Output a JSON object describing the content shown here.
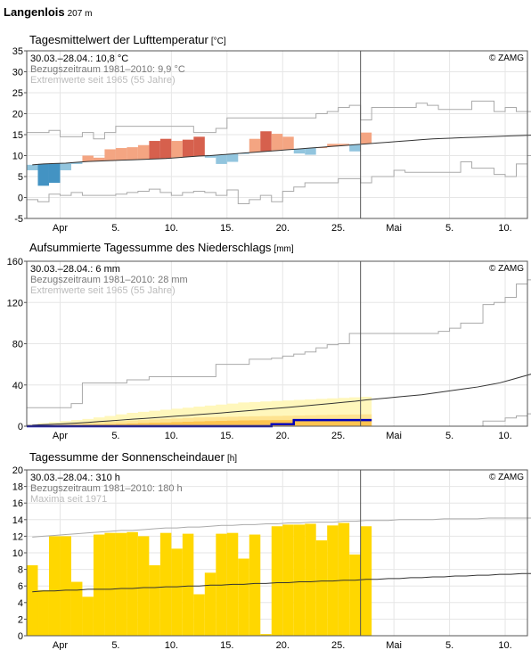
{
  "station": {
    "name": "Langenlois",
    "altitude": "207 m"
  },
  "colors": {
    "grid": "#e6e6e6",
    "frame": "#555555",
    "ref_line": "#333333",
    "extreme_line": "#aaaaaa",
    "warm_strong": "#d6604d",
    "warm": "#f4a582",
    "cold": "#92c5de",
    "cold_strong": "#4393c3",
    "precip_current": "#0000bb",
    "precip_range_fill": "#fff7bc",
    "precip_mid_fill": "#fee391",
    "precip_low_fill": "#fec44f",
    "sun_fill": "#ffd700",
    "today_line": "#555555"
  },
  "chart_data": [
    {
      "type": "line",
      "id": "temperature",
      "title": "Tagesmittelwert der Lufttemperatur",
      "unit": "[°C]",
      "ylim": [
        -5,
        35
      ],
      "yticks": [
        -5,
        0,
        5,
        10,
        15,
        20,
        25,
        30,
        35
      ],
      "x_range": [
        0,
        45
      ],
      "x_ticks": [
        {
          "x": 3,
          "label": "Apr"
        },
        {
          "x": 8,
          "label": "5."
        },
        {
          "x": 13,
          "label": "10."
        },
        {
          "x": 18,
          "label": "15."
        },
        {
          "x": 23,
          "label": "20."
        },
        {
          "x": 28,
          "label": "25."
        },
        {
          "x": 33,
          "label": "Mai"
        },
        {
          "x": 38,
          "label": "5."
        },
        {
          "x": 43,
          "label": "10."
        }
      ],
      "today_x": 30,
      "legend": {
        "current": "30.03.–28.04.: 10,8 °C",
        "reference": "Bezugszeitraum 1981–2010: 9,9 °C",
        "extremes": "Extremwerte seit 1965 (55 Jahre)"
      },
      "credit": "© ZAMG",
      "grid": true,
      "series": [
        {
          "role": "observed",
          "values": [
            6.5,
            2.8,
            3.5,
            6.5,
            8.0,
            10.0,
            9.5,
            11.5,
            11.8,
            12.0,
            12.5,
            13.5,
            14.0,
            13.5,
            13.8,
            14.5,
            9.5,
            8.0,
            8.5,
            10.5,
            14.0,
            15.8,
            15.2,
            14.5,
            10.5,
            10.2,
            12.0,
            12.8,
            12.8,
            11.0,
            15.5
          ]
        },
        {
          "role": "reference",
          "values": [
            7.8,
            8.0,
            8.1,
            8.2,
            8.4,
            8.6,
            8.7,
            8.8,
            8.9,
            9.0,
            9.1,
            9.2,
            9.3,
            9.5,
            9.7,
            9.9,
            10.0,
            10.2,
            10.4,
            10.6,
            10.8,
            11.0,
            11.2,
            11.4,
            11.6,
            11.8,
            12.0,
            12.2,
            12.4,
            12.6,
            12.8,
            13.0,
            13.2,
            13.4,
            13.6,
            13.8,
            14.0,
            14.1,
            14.2,
            14.3,
            14.4,
            14.5,
            14.6,
            14.7,
            14.8,
            14.9
          ]
        },
        {
          "role": "max_extreme",
          "values": [
            15.5,
            15.5,
            16.0,
            14.5,
            14.5,
            15.5,
            14.0,
            15.5,
            17.0,
            17.0,
            17.0,
            17.0,
            17.0,
            17.0,
            17.0,
            15.5,
            15.5,
            16.5,
            19.0,
            19.0,
            19.0,
            19.0,
            19.0,
            19.0,
            19.0,
            19.0,
            20.0,
            20.5,
            21.5,
            22.0,
            18.5,
            21.5,
            21.5,
            21.5,
            21.5,
            22.5,
            22.0,
            21.0,
            21.0,
            21.0,
            23.0,
            23.0,
            20.5,
            21.5,
            20.5,
            20.5
          ]
        },
        {
          "role": "min_extreme",
          "values": [
            -0.5,
            -1.0,
            0.8,
            0.5,
            1.2,
            0.5,
            0.5,
            0.5,
            0.8,
            1.2,
            1.5,
            2.0,
            1.2,
            0.5,
            1.2,
            1.5,
            1.2,
            0.5,
            1.8,
            -1.5,
            -0.5,
            0.5,
            -1.0,
            1.5,
            2.5,
            3.5,
            3.5,
            3.5,
            4.5,
            4.5,
            3.5,
            5.0,
            5.0,
            6.5,
            6.0,
            6.0,
            6.0,
            6.0,
            6.0,
            8.5,
            7.0,
            7.0,
            5.5,
            5.0,
            8.0,
            10.0
          ]
        }
      ]
    },
    {
      "type": "area",
      "id": "precipitation",
      "title": "Aufsummierte Tagessumme des Niederschlags",
      "unit": "[mm]",
      "ylim": [
        0,
        160
      ],
      "yticks": [
        0,
        40,
        80,
        120,
        160
      ],
      "x_range": [
        0,
        45
      ],
      "x_ticks": [
        {
          "x": 3,
          "label": "Apr"
        },
        {
          "x": 8,
          "label": "5."
        },
        {
          "x": 13,
          "label": "10."
        },
        {
          "x": 18,
          "label": "15."
        },
        {
          "x": 23,
          "label": "20."
        },
        {
          "x": 28,
          "label": "25."
        },
        {
          "x": 33,
          "label": "Mai"
        },
        {
          "x": 38,
          "label": "5."
        },
        {
          "x": 43,
          "label": "10."
        }
      ],
      "today_x": 30,
      "legend": {
        "current": "30.03.–28.04.: 6 mm",
        "reference": "Bezugszeitraum 1981–2010: 28 mm",
        "extremes": "Extremwerte seit 1965 (55 Jahre)"
      },
      "credit": "© ZAMG",
      "grid": true,
      "series": [
        {
          "role": "observed",
          "values": [
            0,
            0,
            0,
            0,
            0,
            0,
            0,
            0,
            0,
            0,
            0,
            0,
            0,
            0,
            0,
            0,
            0,
            0,
            0,
            0,
            0,
            0,
            2,
            2,
            6,
            6,
            6,
            6,
            6,
            6,
            6
          ]
        },
        {
          "role": "reference",
          "values": [
            1,
            1.5,
            2,
            2.5,
            3,
            3.7,
            4.5,
            5.2,
            6,
            6.8,
            7.5,
            8.2,
            9,
            9.8,
            10.5,
            11.3,
            12.1,
            12.9,
            13.8,
            14.7,
            15.6,
            16.5,
            17.4,
            18.3,
            19.2,
            20.2,
            21.2,
            22.2,
            23.2,
            24.2,
            25.5,
            26.5,
            27.5,
            28.5,
            29.5,
            30.5,
            32,
            33.5,
            35,
            36.5,
            38,
            40,
            42,
            45,
            48,
            51
          ]
        },
        {
          "role": "max_extreme",
          "values": [
            18,
            18,
            18,
            18,
            22,
            42,
            42,
            42,
            42,
            45,
            45,
            48,
            48,
            48,
            48,
            48,
            48,
            60,
            60,
            60,
            65,
            65,
            66,
            68,
            70,
            72,
            76,
            79,
            80,
            90,
            90,
            90,
            90,
            90,
            90,
            90,
            90,
            92,
            95,
            100,
            100,
            118,
            120,
            125,
            138,
            142
          ]
        },
        {
          "role": "min_extreme",
          "values": [
            0,
            0,
            0,
            0,
            0,
            0,
            0,
            0,
            0,
            0,
            0,
            0,
            0,
            0,
            0,
            0,
            0,
            0,
            0,
            0,
            0,
            0,
            0,
            0,
            0,
            0,
            0,
            0,
            0,
            0,
            0,
            0,
            0,
            0,
            0,
            0,
            0,
            0,
            0,
            0,
            0,
            5,
            5,
            8,
            10,
            12
          ]
        },
        {
          "role": "band_upper",
          "values": [
            2,
            3,
            4,
            5,
            6,
            7,
            8.5,
            10,
            11.5,
            13,
            14,
            15,
            16,
            17,
            18,
            19,
            20,
            21,
            22,
            23,
            23.5,
            24,
            24.5,
            25,
            25.5,
            26,
            26.5,
            27,
            27.5,
            28,
            28.5
          ]
        },
        {
          "role": "band_mid",
          "values": [
            1,
            1.5,
            2,
            2.5,
            3,
            3.5,
            4,
            4.5,
            5,
            5.5,
            6,
            6.5,
            7,
            7.5,
            8,
            8.5,
            8.8,
            9,
            9.2,
            9.4,
            9.6,
            9.8,
            10,
            10.2,
            10.4,
            10.6,
            10.8,
            11,
            11.2,
            11.4,
            11.6
          ]
        },
        {
          "role": "band_low",
          "values": [
            0.5,
            0.7,
            0.9,
            1.1,
            1.3,
            1.5,
            1.7,
            2,
            2.3,
            2.6,
            3,
            3.3,
            3.6,
            4,
            4.3,
            4.6,
            5,
            5.2,
            5.4,
            5.6,
            5.7,
            5.8,
            5.9,
            6,
            6.1,
            6.2,
            6.3,
            6.4,
            6.5,
            6.6,
            6.7
          ]
        }
      ]
    },
    {
      "type": "bar",
      "id": "sunshine",
      "title": "Tagessumme der Sonnenscheindauer",
      "unit": "[h]",
      "ylim": [
        0,
        20
      ],
      "yticks": [
        0,
        2,
        4,
        6,
        8,
        10,
        12,
        14,
        16,
        18,
        20
      ],
      "x_range": [
        0,
        45
      ],
      "x_ticks": [
        {
          "x": 3,
          "label": "Apr"
        },
        {
          "x": 8,
          "label": "5."
        },
        {
          "x": 13,
          "label": "10."
        },
        {
          "x": 18,
          "label": "15."
        },
        {
          "x": 23,
          "label": "20."
        },
        {
          "x": 28,
          "label": "25."
        },
        {
          "x": 33,
          "label": "Mai"
        },
        {
          "x": 38,
          "label": "5."
        },
        {
          "x": 43,
          "label": "10."
        }
      ],
      "today_x": 30,
      "legend": {
        "current": "30.03.–28.04.: 310 h",
        "reference": "Bezugszeitraum 1981–2010: 180 h",
        "extremes": "Maxima seit 1971"
      },
      "credit": "© ZAMG",
      "grid": true,
      "series": [
        {
          "role": "observed",
          "values": [
            8.5,
            5.5,
            12.0,
            12.0,
            6.5,
            4.7,
            12.2,
            12.4,
            12.4,
            12.5,
            12.0,
            8.5,
            12.4,
            10.5,
            12.3,
            5.0,
            7.6,
            12.3,
            12.4,
            9.3,
            12.2,
            0.2,
            13.2,
            13.4,
            13.4,
            13.5,
            11.5,
            13.3,
            13.6,
            9.8,
            13.2
          ]
        },
        {
          "role": "reference",
          "values": [
            5.3,
            5.4,
            5.4,
            5.5,
            5.5,
            5.6,
            5.6,
            5.6,
            5.7,
            5.7,
            5.8,
            5.8,
            5.9,
            5.9,
            6.0,
            6.0,
            6.1,
            6.1,
            6.2,
            6.2,
            6.3,
            6.3,
            6.4,
            6.4,
            6.5,
            6.5,
            6.6,
            6.6,
            6.7,
            6.7,
            6.8,
            6.8,
            6.9,
            6.9,
            7.0,
            7.0,
            7.1,
            7.1,
            7.2,
            7.2,
            7.3,
            7.3,
            7.4,
            7.4,
            7.5,
            7.5
          ]
        },
        {
          "role": "max_extreme",
          "values": [
            11.9,
            12.0,
            12.1,
            12.2,
            12.3,
            12.4,
            12.5,
            12.6,
            12.7,
            12.7,
            12.8,
            12.9,
            13.0,
            13.0,
            13.1,
            13.1,
            13.2,
            13.3,
            13.3,
            13.4,
            13.4,
            13.5,
            13.5,
            13.6,
            13.6,
            13.7,
            13.7,
            13.7,
            13.8,
            13.8,
            13.9,
            13.9,
            13.9,
            14.0,
            14.0,
            14.0,
            14.0,
            14.1,
            14.1,
            14.1,
            14.1,
            14.2,
            14.2,
            14.2,
            14.2,
            14.2
          ]
        }
      ]
    }
  ]
}
